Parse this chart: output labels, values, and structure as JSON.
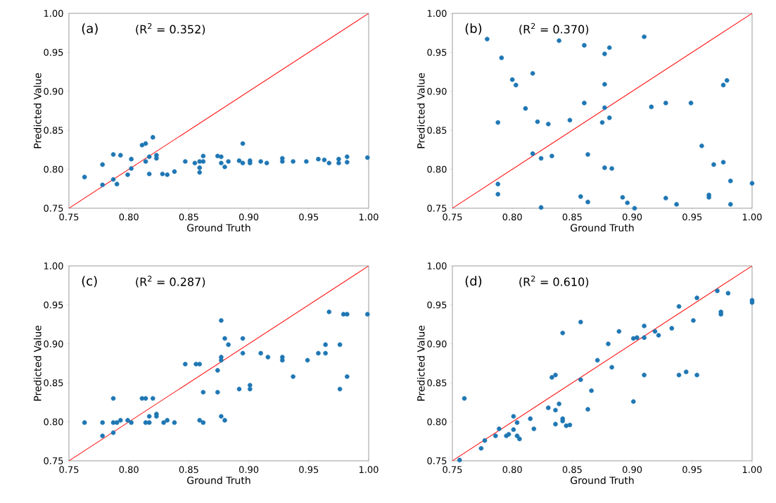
{
  "chart_data": [
    {
      "type": "scatter",
      "xlabel": "Ground Truth",
      "ylabel": "Predicted Value",
      "annotations": [
        "(a)",
        "(R$^{2}$ = 0.352)"
      ],
      "xlim": [
        0.75,
        1.0
      ],
      "ylim": [
        0.75,
        1.0
      ],
      "xticks": [
        {
          "value": 0.75,
          "label": "0.75"
        },
        {
          "value": 0.8,
          "label": "0.80"
        },
        {
          "value": 0.85,
          "label": "0.85"
        },
        {
          "value": 0.9,
          "label": "0.90"
        },
        {
          "value": 0.95,
          "label": "0.95"
        },
        {
          "value": 1.0,
          "label": "1.00"
        }
      ],
      "yticks": [
        {
          "value": 0.75,
          "label": "0.75"
        },
        {
          "value": 0.8,
          "label": "0.80"
        },
        {
          "value": 0.85,
          "label": "0.85"
        },
        {
          "value": 0.9,
          "label": "0.90"
        },
        {
          "value": 0.95,
          "label": "0.95"
        },
        {
          "value": 1.0,
          "label": "1.00"
        }
      ],
      "marker": "circle",
      "series": [
        {
          "color": "#1f77b4",
          "x": [
            0.763,
            0.778,
            0.778,
            0.787,
            0.793,
            0.787,
            0.79,
            0.799,
            0.802,
            0.802,
            0.811,
            0.814,
            0.82,
            0.814,
            0.817,
            0.817,
            0.823,
            0.823,
            0.828,
            0.832,
            0.838,
            0.847,
            0.855,
            0.859,
            0.862,
            0.862,
            0.859,
            0.859,
            0.874,
            0.877,
            0.877,
            0.88,
            0.883,
            0.892,
            0.895,
            0.895,
            0.901,
            0.901,
            0.91,
            0.915,
            0.928,
            0.928,
            0.937,
            0.948,
            0.958,
            0.963,
            0.967,
            0.975,
            0.975,
            0.982,
            0.982,
            0.999
          ],
          "values": [
            0.79,
            0.806,
            0.78,
            0.819,
            0.818,
            0.787,
            0.781,
            0.793,
            0.813,
            0.801,
            0.831,
            0.833,
            0.841,
            0.81,
            0.816,
            0.794,
            0.818,
            0.814,
            0.794,
            0.793,
            0.797,
            0.81,
            0.808,
            0.81,
            0.81,
            0.817,
            0.802,
            0.796,
            0.817,
            0.816,
            0.808,
            0.803,
            0.81,
            0.811,
            0.833,
            0.808,
            0.811,
            0.808,
            0.81,
            0.808,
            0.814,
            0.81,
            0.81,
            0.81,
            0.813,
            0.812,
            0.808,
            0.813,
            0.808,
            0.816,
            0.809,
            0.815
          ]
        },
        {
          "type": "line",
          "color": "#ff0000",
          "marker": "none",
          "x": [
            0.75,
            1.0
          ],
          "values": [
            0.75,
            1.0
          ]
        }
      ]
    },
    {
      "type": "scatter",
      "xlabel": "Ground Truth",
      "ylabel": "Predicted Value",
      "annotations": [
        "(b)",
        "(R$^{2}$ = 0.370)"
      ],
      "xlim": [
        0.75,
        1.0
      ],
      "ylim": [
        0.75,
        1.0
      ],
      "xticks": [
        {
          "value": 0.75,
          "label": "0.75"
        },
        {
          "value": 0.8,
          "label": "0.80"
        },
        {
          "value": 0.85,
          "label": "0.85"
        },
        {
          "value": 0.9,
          "label": "0.90"
        },
        {
          "value": 0.95,
          "label": "0.95"
        },
        {
          "value": 1.0,
          "label": "1.00"
        }
      ],
      "yticks": [
        {
          "value": 0.75,
          "label": "0.75"
        },
        {
          "value": 0.8,
          "label": "0.80"
        },
        {
          "value": 0.85,
          "label": "0.85"
        },
        {
          "value": 0.9,
          "label": "0.90"
        },
        {
          "value": 0.95,
          "label": "0.95"
        },
        {
          "value": 1.0,
          "label": "1.00"
        }
      ],
      "marker": "circle",
      "series": [
        {
          "color": "#1f77b4",
          "x": [
            0.779,
            0.839,
            0.86,
            0.881,
            0.877,
            0.91,
            0.791,
            0.817,
            0.8,
            0.803,
            0.877,
            0.979,
            0.976,
            0.86,
            0.811,
            0.877,
            0.916,
            0.928,
            0.949,
            0.788,
            0.821,
            0.83,
            0.848,
            0.875,
            0.881,
            0.958,
            0.817,
            0.824,
            0.833,
            0.863,
            0.877,
            0.883,
            0.968,
            0.976,
            0.788,
            0.788,
            0.982,
            1.0,
            0.857,
            0.863,
            0.892,
            0.896,
            0.824,
            0.902,
            0.928,
            0.937,
            0.964,
            0.964,
            0.982
          ],
          "values": [
            0.967,
            0.965,
            0.959,
            0.956,
            0.948,
            0.97,
            0.943,
            0.923,
            0.915,
            0.908,
            0.909,
            0.914,
            0.908,
            0.885,
            0.878,
            0.879,
            0.88,
            0.885,
            0.885,
            0.86,
            0.861,
            0.858,
            0.863,
            0.86,
            0.866,
            0.83,
            0.82,
            0.814,
            0.817,
            0.819,
            0.802,
            0.801,
            0.806,
            0.809,
            0.781,
            0.768,
            0.785,
            0.782,
            0.765,
            0.758,
            0.764,
            0.757,
            0.751,
            0.75,
            0.763,
            0.755,
            0.767,
            0.764,
            0.755
          ]
        },
        {
          "type": "line",
          "color": "#ff0000",
          "marker": "none",
          "x": [
            0.75,
            1.0
          ],
          "values": [
            0.75,
            1.0
          ]
        }
      ]
    },
    {
      "type": "scatter",
      "xlabel": "Ground Truth",
      "ylabel": "Predicted Value",
      "annotations": [
        "(c)",
        "(R$^{2}$ = 0.287)"
      ],
      "xlim": [
        0.75,
        1.0
      ],
      "ylim": [
        0.75,
        1.0
      ],
      "xticks": [
        {
          "value": 0.75,
          "label": "0.75"
        },
        {
          "value": 0.8,
          "label": "0.80"
        },
        {
          "value": 0.85,
          "label": "0.85"
        },
        {
          "value": 0.9,
          "label": "0.90"
        },
        {
          "value": 0.95,
          "label": "0.95"
        },
        {
          "value": 1.0,
          "label": "1.00"
        }
      ],
      "yticks": [
        {
          "value": 0.75,
          "label": "0.75"
        },
        {
          "value": 0.8,
          "label": "0.80"
        },
        {
          "value": 0.85,
          "label": "0.85"
        },
        {
          "value": 0.9,
          "label": "0.90"
        },
        {
          "value": 0.95,
          "label": "0.95"
        },
        {
          "value": 1.0,
          "label": "1.00"
        }
      ],
      "marker": "circle",
      "series": [
        {
          "color": "#1f77b4",
          "x": [
            0.763,
            0.778,
            0.787,
            0.79,
            0.793,
            0.799,
            0.802,
            0.787,
            0.811,
            0.814,
            0.82,
            0.817,
            0.823,
            0.823,
            0.814,
            0.817,
            0.829,
            0.832,
            0.838,
            0.847,
            0.856,
            0.859,
            0.859,
            0.862,
            0.862,
            0.874,
            0.874,
            0.877,
            0.877,
            0.877,
            0.877,
            0.88,
            0.88,
            0.883,
            0.892,
            0.895,
            0.895,
            0.901,
            0.901,
            0.91,
            0.916,
            0.928,
            0.928,
            0.937,
            0.949,
            0.958,
            0.964,
            0.964,
            0.967,
            0.976,
            0.976,
            0.979,
            0.982,
            0.982,
            0.999,
            0.778,
            0.787
          ],
          "values": [
            0.799,
            0.799,
            0.799,
            0.799,
            0.802,
            0.802,
            0.799,
            0.83,
            0.83,
            0.83,
            0.83,
            0.807,
            0.81,
            0.807,
            0.799,
            0.799,
            0.799,
            0.802,
            0.799,
            0.874,
            0.874,
            0.874,
            0.802,
            0.799,
            0.838,
            0.866,
            0.838,
            0.93,
            0.883,
            0.879,
            0.807,
            0.802,
            0.907,
            0.899,
            0.842,
            0.907,
            0.888,
            0.847,
            0.842,
            0.888,
            0.883,
            0.883,
            0.879,
            0.858,
            0.879,
            0.888,
            0.888,
            0.899,
            0.941,
            0.899,
            0.842,
            0.938,
            0.938,
            0.858,
            0.938,
            0.782,
            0.786
          ]
        },
        {
          "type": "line",
          "color": "#ff0000",
          "marker": "none",
          "x": [
            0.75,
            1.0
          ],
          "values": [
            0.75,
            1.0
          ]
        }
      ]
    },
    {
      "type": "scatter",
      "xlabel": "Ground Truth",
      "ylabel": "Predicted Value",
      "annotations": [
        "(d)",
        "(R$^{2}$ = 0.610)"
      ],
      "xlim": [
        0.75,
        1.0
      ],
      "ylim": [
        0.75,
        1.0
      ],
      "xticks": [
        {
          "value": 0.75,
          "label": "0.75"
        },
        {
          "value": 0.8,
          "label": "0.80"
        },
        {
          "value": 0.85,
          "label": "0.85"
        },
        {
          "value": 0.9,
          "label": "0.90"
        },
        {
          "value": 0.95,
          "label": "0.95"
        },
        {
          "value": 1.0,
          "label": "1.00"
        }
      ],
      "yticks": [
        {
          "value": 0.75,
          "label": "0.75"
        },
        {
          "value": 0.8,
          "label": "0.80"
        },
        {
          "value": 0.85,
          "label": "0.85"
        },
        {
          "value": 0.9,
          "label": "0.90"
        },
        {
          "value": 0.95,
          "label": "0.95"
        },
        {
          "value": 1.0,
          "label": "1.00"
        }
      ],
      "marker": "circle",
      "series": [
        {
          "color": "#1f77b4",
          "x": [
            0.756,
            0.76,
            0.774,
            0.777,
            0.786,
            0.789,
            0.795,
            0.797,
            0.801,
            0.801,
            0.804,
            0.804,
            0.806,
            0.815,
            0.818,
            0.83,
            0.833,
            0.836,
            0.836,
            0.836,
            0.839,
            0.842,
            0.842,
            0.842,
            0.845,
            0.848,
            0.857,
            0.857,
            0.863,
            0.866,
            0.871,
            0.88,
            0.883,
            0.889,
            0.901,
            0.904,
            0.901,
            0.91,
            0.91,
            0.91,
            0.919,
            0.922,
            0.933,
            0.939,
            0.939,
            0.945,
            0.951,
            0.954,
            0.954,
            0.971,
            0.974,
            0.974,
            0.98,
            1.0,
            1.0
          ],
          "values": [
            0.751,
            0.83,
            0.766,
            0.776,
            0.782,
            0.791,
            0.782,
            0.784,
            0.79,
            0.807,
            0.799,
            0.782,
            0.778,
            0.804,
            0.791,
            0.818,
            0.857,
            0.86,
            0.815,
            0.797,
            0.823,
            0.804,
            0.801,
            0.914,
            0.795,
            0.796,
            0.854,
            0.928,
            0.816,
            0.84,
            0.879,
            0.9,
            0.87,
            0.916,
            0.907,
            0.908,
            0.826,
            0.923,
            0.908,
            0.86,
            0.916,
            0.911,
            0.92,
            0.948,
            0.86,
            0.864,
            0.93,
            0.959,
            0.86,
            0.968,
            0.941,
            0.938,
            0.965,
            0.956,
            0.953
          ]
        },
        {
          "type": "line",
          "color": "#ff0000",
          "marker": "none",
          "x": [
            0.75,
            1.0
          ],
          "values": [
            0.75,
            1.0
          ]
        }
      ]
    }
  ]
}
